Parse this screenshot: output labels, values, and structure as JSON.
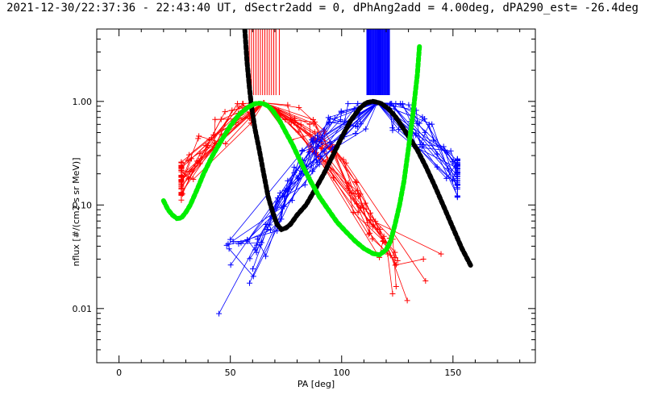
{
  "chart_data": {
    "type": "line",
    "title": "2021-12-30/22:37:36 - 22:43:40 UT, dSectr2add = 0, dPhAng2add = 4.00deg, dPA290_est= -26.4deg",
    "xlabel": "PA [deg]",
    "ylabel": "nflux [#/(cm2 s sr MeV)]",
    "xlim": [
      -10,
      187
    ],
    "ylim": [
      0.003,
      5.0
    ],
    "yscale": "log",
    "xticks": [
      0,
      50,
      100,
      150
    ],
    "xtick_labels": [
      "0",
      "50",
      "100",
      "150"
    ],
    "yticks": [
      0.01,
      0.1,
      1.0
    ],
    "ytick_labels": [
      "0.01",
      "0.10",
      "1.00"
    ],
    "grid": false,
    "colors": {
      "red": "#ff0000",
      "blue": "#0000ff",
      "black": "#000000",
      "green": "#00ee00"
    },
    "red_peak_lines_x": [
      58.5,
      59.5,
      60.5,
      61.5,
      62.5,
      63.5,
      64.5,
      65.5,
      66.5,
      67.5,
      68.5,
      69.5,
      70.5,
      72.0
    ],
    "blue_peak_lines_x": [
      111.5,
      112.2,
      112.9,
      113.6,
      114.3,
      115.0,
      115.7,
      116.4,
      117.1,
      117.8,
      118.5,
      119.2,
      119.9,
      120.6,
      121.3
    ],
    "series": [
      {
        "color": "black",
        "style": "thick-dashed",
        "x": [
          56.5,
          57.5,
          58.5,
          59.5,
          61,
          63,
          65,
          67,
          69,
          71,
          73,
          75,
          77,
          80,
          84,
          88,
          92,
          96,
          100,
          104,
          108,
          111,
          114,
          116,
          118,
          121,
          124,
          127,
          130,
          134,
          138,
          142,
          146,
          150,
          154,
          158
        ],
        "y": [
          5.0,
          2.4,
          1.4,
          0.9,
          0.55,
          0.34,
          0.2,
          0.12,
          0.085,
          0.065,
          0.058,
          0.06,
          0.065,
          0.08,
          0.1,
          0.14,
          0.2,
          0.3,
          0.45,
          0.65,
          0.85,
          0.97,
          1.0,
          0.98,
          0.95,
          0.85,
          0.72,
          0.58,
          0.46,
          0.34,
          0.23,
          0.15,
          0.095,
          0.06,
          0.038,
          0.026
        ]
      },
      {
        "color": "green",
        "style": "thick-dashed",
        "x": [
          20,
          22,
          24,
          26,
          28,
          30,
          32,
          35,
          38,
          42,
          46,
          50,
          54,
          58,
          61,
          63,
          65,
          67,
          69,
          72,
          75,
          78,
          82,
          86,
          90,
          94,
          98,
          102,
          106,
          110,
          114,
          117,
          120,
          122,
          124,
          126,
          128,
          130,
          132,
          134,
          135
        ],
        "y": [
          0.11,
          0.09,
          0.08,
          0.074,
          0.075,
          0.085,
          0.1,
          0.14,
          0.2,
          0.3,
          0.42,
          0.58,
          0.75,
          0.88,
          0.95,
          0.96,
          0.95,
          0.9,
          0.82,
          0.66,
          0.5,
          0.38,
          0.25,
          0.17,
          0.12,
          0.09,
          0.068,
          0.055,
          0.045,
          0.038,
          0.034,
          0.033,
          0.037,
          0.045,
          0.065,
          0.1,
          0.17,
          0.35,
          0.75,
          1.8,
          3.5
        ]
      }
    ]
  }
}
